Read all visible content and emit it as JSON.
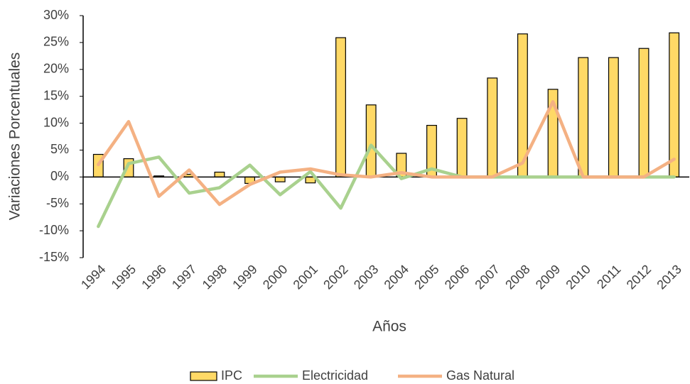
{
  "chart_data": {
    "type": "bar-line",
    "y_label": "Variaciones Porcentuales",
    "x_label": "Años",
    "categories": [
      "1994",
      "1995",
      "1996",
      "1997",
      "1998",
      "1999",
      "2000",
      "2001",
      "2002",
      "2003",
      "2004",
      "2005",
      "2006",
      "2007",
      "2008",
      "2009",
      "2010",
      "2011",
      "2012",
      "2013"
    ],
    "series": [
      {
        "name": "IPC",
        "type": "bar",
        "color": "#FFD966",
        "values": [
          4.2,
          3.4,
          0.2,
          0.5,
          0.9,
          -1.2,
          -0.9,
          -1.1,
          25.9,
          13.4,
          4.4,
          9.6,
          10.9,
          18.4,
          26.6,
          16.3,
          22.2,
          22.2,
          23.9,
          26.8
        ]
      },
      {
        "name": "Electricidad",
        "type": "line",
        "color": "#A9D18E",
        "values": [
          -9.2,
          2.5,
          3.7,
          -3.0,
          -2.0,
          2.2,
          -3.3,
          1.0,
          -5.8,
          5.9,
          -0.3,
          1.5,
          0,
          0,
          0,
          0,
          0,
          0,
          0,
          0
        ]
      },
      {
        "name": "Gas Natural",
        "type": "line",
        "color": "#F4B183",
        "values": [
          2.3,
          10.3,
          -3.6,
          1.3,
          -5.1,
          -1.4,
          0.9,
          1.5,
          0.4,
          0,
          0.8,
          0,
          0,
          0,
          2.6,
          14.0,
          0,
          0,
          0,
          3.3
        ]
      }
    ],
    "ylim": [
      -15,
      30
    ],
    "yticks": [
      {
        "value": -15,
        "label": "-15%"
      },
      {
        "value": -10,
        "label": "-10%"
      },
      {
        "value": -5,
        "label": "-5%"
      },
      {
        "value": 0,
        "label": "0%"
      },
      {
        "value": 5,
        "label": "5%"
      },
      {
        "value": 10,
        "label": "10%"
      },
      {
        "value": 15,
        "label": "15%"
      },
      {
        "value": 20,
        "label": "20%"
      },
      {
        "value": 25,
        "label": "25%"
      },
      {
        "value": 30,
        "label": "30%"
      }
    ],
    "grid": false,
    "legend": "bottom"
  }
}
